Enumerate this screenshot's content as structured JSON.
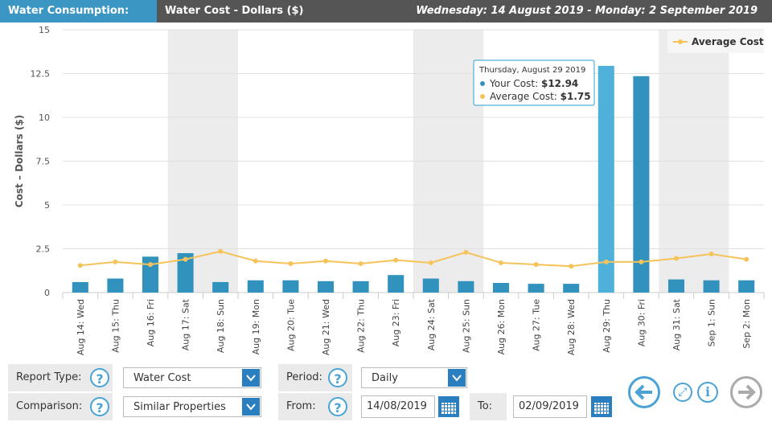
{
  "header": {
    "title": "Water Consumption:",
    "subtitle": "Water Cost - Dollars ($)",
    "date_range": "Wednesday: 14 August 2019 - Monday: 2 September 2019"
  },
  "chart_data": {
    "type": "bar",
    "ylabel": "Cost – Dollars ($)",
    "ylim": [
      0,
      15
    ],
    "yticks": [
      "0",
      "2.5",
      "5",
      "7.5",
      "10",
      "12.5",
      "15"
    ],
    "categories": [
      "Aug 14: Wed",
      "Aug 15: Thu",
      "Aug 16: Fri",
      "Aug 17: Sat",
      "Aug 18: Sun",
      "Aug 19: Mon",
      "Aug 20: Tue",
      "Aug 21: Wed",
      "Aug 22: Thu",
      "Aug 23: Fri",
      "Aug 24: Sat",
      "Aug 25: Sun",
      "Aug 26: Mon",
      "Aug 27: Tue",
      "Aug 28: Wed",
      "Aug 29: Thu",
      "Aug 30: Fri",
      "Aug 31: Sat",
      "Sep 1: Sun",
      "Sep 2: Mon"
    ],
    "weekend_indices": [
      3,
      4,
      10,
      11,
      17,
      18
    ],
    "series": [
      {
        "name": "Your Cost",
        "type": "bar",
        "color": "#3193bd",
        "values": [
          0.6,
          0.8,
          2.05,
          2.25,
          0.6,
          0.7,
          0.7,
          0.65,
          0.65,
          1.0,
          0.8,
          0.65,
          0.55,
          0.5,
          0.5,
          12.94,
          12.35,
          0.75,
          0.7,
          0.7
        ]
      },
      {
        "name": "Average Cost",
        "type": "line",
        "color": "#f5c35a",
        "values": [
          1.55,
          1.75,
          1.6,
          1.9,
          2.35,
          1.8,
          1.65,
          1.8,
          1.65,
          1.85,
          1.7,
          2.3,
          1.7,
          1.6,
          1.5,
          1.75,
          1.75,
          1.95,
          2.2,
          1.9
        ]
      }
    ],
    "highlight_index": 15,
    "highlight_color": "#4fb0da",
    "legend": {
      "position": "top-right",
      "label": "Average Cost"
    },
    "tooltip": {
      "date": "Thursday, August 29 2019",
      "your_label": "Your Cost:",
      "your_value": "$12.94",
      "avg_label": "Average Cost:",
      "avg_value": "$1.75"
    }
  },
  "controls": {
    "report_type_label": "Report Type:",
    "report_type_value": "Water Cost",
    "comparison_label": "Comparison:",
    "comparison_value": "Similar Properties",
    "period_label": "Period:",
    "period_value": "Daily",
    "from_label": "From:",
    "from_value": "14/08/2019",
    "to_label": "To:",
    "to_value": "02/09/2019",
    "help_glyph": "?",
    "dropdown_glyph": "⌄",
    "info_glyph": "i",
    "expand_glyph": "⤢"
  }
}
